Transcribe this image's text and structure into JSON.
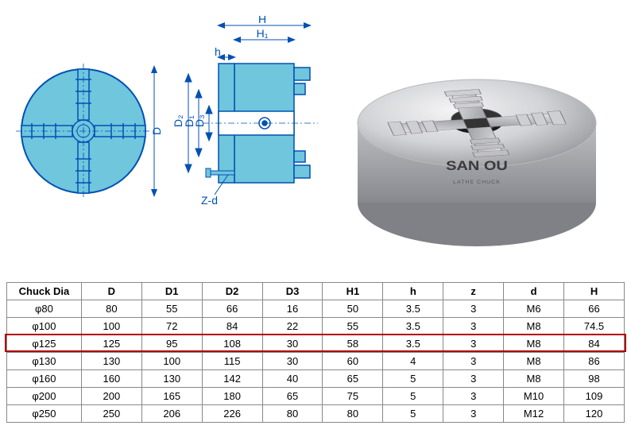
{
  "diagram": {
    "labels": {
      "D": "D",
      "D1": "D₁",
      "D2": "D₂",
      "D3": "D₃",
      "H": "H",
      "H1": "H₁",
      "h": "h",
      "Zd": "Z-d"
    },
    "colors": {
      "fill": "#6fc6dd",
      "stroke": "#0050b3",
      "dim": "#0050b3",
      "bg": "#ffffff"
    }
  },
  "photo": {
    "brand": "SAN OU",
    "subtext": "LATHE CHUCK",
    "body_light": "#e8e8ea",
    "body_mid": "#c8c9cc",
    "body_dark": "#9a9ba0",
    "jaw_light": "#d8d9db",
    "jaw_dark": "#888a90",
    "bore": "#1a1a1a"
  },
  "table": {
    "columns": [
      "Chuck Dia",
      "D",
      "D1",
      "D2",
      "D3",
      "H1",
      "h",
      "z",
      "d",
      "H"
    ],
    "col_widths_pct": [
      12,
      9,
      9,
      9,
      9,
      9,
      9,
      9,
      9,
      9
    ],
    "highlight_row_index": 2,
    "highlight_color": "#b00000",
    "rows": [
      [
        "φ80",
        "80",
        "55",
        "66",
        "16",
        "50",
        "3.5",
        "3",
        "M6",
        "66"
      ],
      [
        "φ100",
        "100",
        "72",
        "84",
        "22",
        "55",
        "3.5",
        "3",
        "M8",
        "74.5"
      ],
      [
        "φ125",
        "125",
        "95",
        "108",
        "30",
        "58",
        "3.5",
        "3",
        "M8",
        "84"
      ],
      [
        "φ130",
        "130",
        "100",
        "115",
        "30",
        "60",
        "4",
        "3",
        "M8",
        "86"
      ],
      [
        "φ160",
        "160",
        "130",
        "142",
        "40",
        "65",
        "5",
        "3",
        "M8",
        "98"
      ],
      [
        "φ200",
        "200",
        "165",
        "180",
        "65",
        "75",
        "5",
        "3",
        "M10",
        "109"
      ],
      [
        "φ250",
        "250",
        "206",
        "226",
        "80",
        "80",
        "5",
        "3",
        "M12",
        "120"
      ]
    ]
  }
}
